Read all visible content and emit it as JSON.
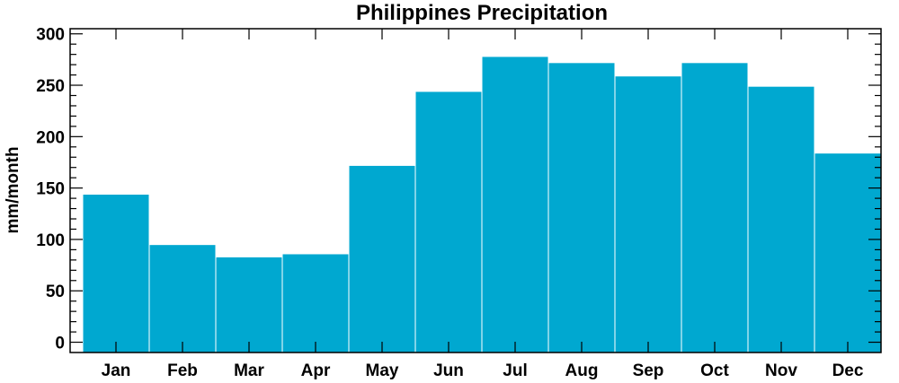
{
  "chart_data": {
    "type": "bar",
    "title": "Philippines Precipitation",
    "xlabel": "",
    "ylabel": "mm/month",
    "categories": [
      "Jan",
      "Feb",
      "Mar",
      "Apr",
      "May",
      "Jun",
      "Jul",
      "Aug",
      "Sep",
      "Oct",
      "Nov",
      "Dec"
    ],
    "values": [
      144,
      95,
      83,
      86,
      172,
      244,
      278,
      272,
      259,
      272,
      249,
      184
    ],
    "ylim": [
      -10,
      305
    ],
    "yticks": [
      0,
      50,
      100,
      150,
      200,
      250,
      300
    ],
    "bar_color": "#00A8D0",
    "bar_edge_color": "#ffffff",
    "grid": false
  }
}
